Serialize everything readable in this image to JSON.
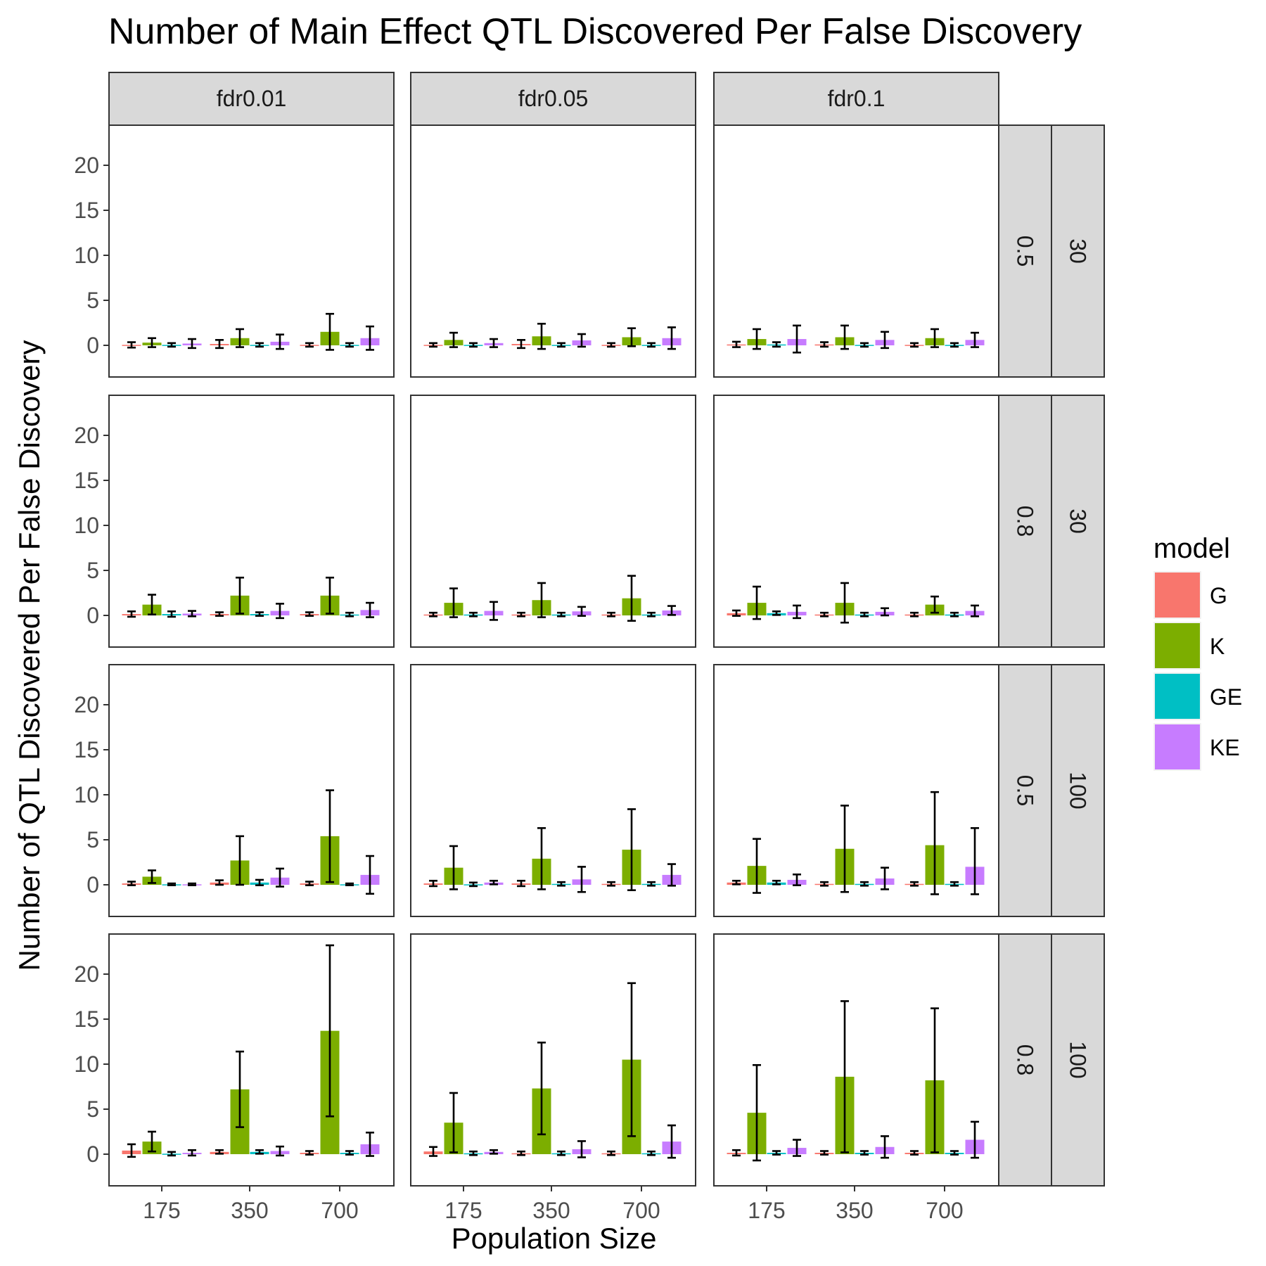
{
  "chart_data": {
    "type": "bar",
    "title": "Number of Main Effect QTL Discovered Per False Discovery",
    "xlabel": "Population Size",
    "ylabel": "Number of QTL Discovered Per False Discovery",
    "x_categories": [
      "175",
      "350",
      "700"
    ],
    "y_ticks": [
      0,
      5,
      10,
      15,
      20
    ],
    "ylim": [
      -1.2,
      25
    ],
    "facet_columns": [
      "fdr0.01",
      "fdr0.05",
      "fdr0.1"
    ],
    "facet_rows": [
      {
        "h2": "0.5",
        "n": "30"
      },
      {
        "h2": "0.8",
        "n": "30"
      },
      {
        "h2": "0.5",
        "n": "100"
      },
      {
        "h2": "0.8",
        "n": "100"
      }
    ],
    "legend": {
      "title": "model",
      "position": "right",
      "entries": [
        {
          "name": "G",
          "color": "#F8766D"
        },
        {
          "name": "K",
          "color": "#7CAE00"
        },
        {
          "name": "GE",
          "color": "#00BFC4"
        },
        {
          "name": "KE",
          "color": "#C77CFF"
        }
      ]
    },
    "panels": [
      {
        "row": 0,
        "col": 0,
        "G": [
          [
            0.05,
            0.3
          ],
          [
            0.15,
            0.45
          ],
          [
            0.05,
            0.2
          ]
        ],
        "K": [
          [
            0.3,
            0.5
          ],
          [
            0.8,
            1.0
          ],
          [
            1.5,
            2.0
          ]
        ],
        "GE": [
          [
            0.05,
            0.2
          ],
          [
            0.05,
            0.2
          ],
          [
            0.05,
            0.2
          ]
        ],
        "KE": [
          [
            0.2,
            0.5
          ],
          [
            0.4,
            0.8
          ],
          [
            0.8,
            1.3
          ]
        ]
      },
      {
        "row": 0,
        "col": 1,
        "G": [
          [
            0.05,
            0.2
          ],
          [
            0.15,
            0.45
          ],
          [
            0.05,
            0.2
          ]
        ],
        "K": [
          [
            0.6,
            0.8
          ],
          [
            1.0,
            1.4
          ],
          [
            0.9,
            1.0
          ]
        ],
        "GE": [
          [
            0.05,
            0.2
          ],
          [
            0.05,
            0.2
          ],
          [
            0.05,
            0.2
          ]
        ],
        "KE": [
          [
            0.25,
            0.45
          ],
          [
            0.55,
            0.7
          ],
          [
            0.8,
            1.2
          ]
        ]
      },
      {
        "row": 0,
        "col": 2,
        "G": [
          [
            0.1,
            0.3
          ],
          [
            0.1,
            0.25
          ],
          [
            0.05,
            0.2
          ]
        ],
        "K": [
          [
            0.7,
            1.1
          ],
          [
            0.9,
            1.3
          ],
          [
            0.8,
            1.0
          ]
        ],
        "GE": [
          [
            0.1,
            0.25
          ],
          [
            0.05,
            0.2
          ],
          [
            0.05,
            0.2
          ]
        ],
        "KE": [
          [
            0.7,
            1.5
          ],
          [
            0.6,
            0.9
          ],
          [
            0.6,
            0.8
          ]
        ]
      },
      {
        "row": 1,
        "col": 0,
        "G": [
          [
            0.15,
            0.3
          ],
          [
            0.15,
            0.2
          ],
          [
            0.15,
            0.2
          ]
        ],
        "K": [
          [
            1.2,
            1.1
          ],
          [
            2.2,
            2.0
          ],
          [
            2.2,
            2.0
          ]
        ],
        "GE": [
          [
            0.15,
            0.3
          ],
          [
            0.15,
            0.2
          ],
          [
            0.1,
            0.2
          ]
        ],
        "KE": [
          [
            0.2,
            0.3
          ],
          [
            0.5,
            0.8
          ],
          [
            0.6,
            0.8
          ]
        ]
      },
      {
        "row": 1,
        "col": 1,
        "G": [
          [
            0.1,
            0.2
          ],
          [
            0.1,
            0.2
          ],
          [
            0.1,
            0.2
          ]
        ],
        "K": [
          [
            1.4,
            1.6
          ],
          [
            1.7,
            1.9
          ],
          [
            1.9,
            2.5
          ]
        ],
        "GE": [
          [
            0.1,
            0.2
          ],
          [
            0.1,
            0.2
          ],
          [
            0.1,
            0.2
          ]
        ],
        "KE": [
          [
            0.5,
            1.0
          ],
          [
            0.45,
            0.5
          ],
          [
            0.55,
            0.5
          ]
        ]
      },
      {
        "row": 1,
        "col": 2,
        "G": [
          [
            0.25,
            0.3
          ],
          [
            0.1,
            0.2
          ],
          [
            0.1,
            0.2
          ]
        ],
        "K": [
          [
            1.4,
            1.8
          ],
          [
            1.4,
            2.2
          ],
          [
            1.2,
            0.9
          ]
        ],
        "GE": [
          [
            0.25,
            0.2
          ],
          [
            0.1,
            0.2
          ],
          [
            0.1,
            0.2
          ]
        ],
        "KE": [
          [
            0.4,
            0.7
          ],
          [
            0.4,
            0.4
          ],
          [
            0.5,
            0.6
          ]
        ]
      },
      {
        "row": 2,
        "col": 0,
        "G": [
          [
            0.15,
            0.2
          ],
          [
            0.25,
            0.25
          ],
          [
            0.15,
            0.2
          ]
        ],
        "K": [
          [
            0.9,
            0.7
          ],
          [
            2.7,
            2.7
          ],
          [
            5.4,
            5.1
          ]
        ],
        "GE": [
          [
            0.05,
            0.1
          ],
          [
            0.25,
            0.3
          ],
          [
            0.05,
            0.1
          ]
        ],
        "KE": [
          [
            0.05,
            0.1
          ],
          [
            0.8,
            1.0
          ],
          [
            1.1,
            2.1
          ]
        ]
      },
      {
        "row": 2,
        "col": 1,
        "G": [
          [
            0.15,
            0.3
          ],
          [
            0.15,
            0.3
          ],
          [
            0.1,
            0.2
          ]
        ],
        "K": [
          [
            1.9,
            2.4
          ],
          [
            2.9,
            3.4
          ],
          [
            3.9,
            4.5
          ]
        ],
        "GE": [
          [
            0.05,
            0.2
          ],
          [
            0.1,
            0.2
          ],
          [
            0.1,
            0.2
          ]
        ],
        "KE": [
          [
            0.25,
            0.2
          ],
          [
            0.6,
            1.4
          ],
          [
            1.1,
            1.2
          ]
        ]
      },
      {
        "row": 2,
        "col": 2,
        "G": [
          [
            0.25,
            0.2
          ],
          [
            0.1,
            0.2
          ],
          [
            0.1,
            0.2
          ]
        ],
        "K": [
          [
            2.1,
            3.0
          ],
          [
            4.0,
            4.8
          ],
          [
            4.4,
            5.9
          ]
        ],
        "GE": [
          [
            0.25,
            0.2
          ],
          [
            0.1,
            0.2
          ],
          [
            0.1,
            0.2
          ]
        ],
        "KE": [
          [
            0.55,
            0.6
          ],
          [
            0.7,
            1.2
          ],
          [
            2.0,
            4.3
          ]
        ]
      },
      {
        "row": 3,
        "col": 0,
        "G": [
          [
            0.4,
            0.7
          ],
          [
            0.25,
            0.2
          ],
          [
            0.15,
            0.2
          ]
        ],
        "K": [
          [
            1.4,
            1.1
          ],
          [
            7.2,
            4.2
          ],
          [
            13.7,
            9.5
          ]
        ],
        "GE": [
          [
            0.05,
            0.2
          ],
          [
            0.25,
            0.2
          ],
          [
            0.15,
            0.2
          ]
        ],
        "KE": [
          [
            0.15,
            0.3
          ],
          [
            0.35,
            0.5
          ],
          [
            1.1,
            1.3
          ]
        ]
      },
      {
        "row": 3,
        "col": 1,
        "G": [
          [
            0.3,
            0.5
          ],
          [
            0.1,
            0.2
          ],
          [
            0.1,
            0.2
          ]
        ],
        "K": [
          [
            3.5,
            3.3
          ],
          [
            7.3,
            5.1
          ],
          [
            10.5,
            8.5
          ]
        ],
        "GE": [
          [
            0.1,
            0.2
          ],
          [
            0.1,
            0.2
          ],
          [
            0.1,
            0.2
          ]
        ],
        "KE": [
          [
            0.25,
            0.2
          ],
          [
            0.55,
            0.9
          ],
          [
            1.4,
            1.8
          ]
        ]
      },
      {
        "row": 3,
        "col": 2,
        "G": [
          [
            0.15,
            0.3
          ],
          [
            0.15,
            0.2
          ],
          [
            0.15,
            0.2
          ]
        ],
        "K": [
          [
            4.6,
            5.3
          ],
          [
            8.6,
            8.4
          ],
          [
            8.2,
            8.0
          ]
        ],
        "GE": [
          [
            0.15,
            0.2
          ],
          [
            0.15,
            0.2
          ],
          [
            0.15,
            0.2
          ]
        ],
        "KE": [
          [
            0.7,
            0.9
          ],
          [
            0.8,
            1.2
          ],
          [
            1.6,
            2.0
          ]
        ]
      }
    ]
  }
}
